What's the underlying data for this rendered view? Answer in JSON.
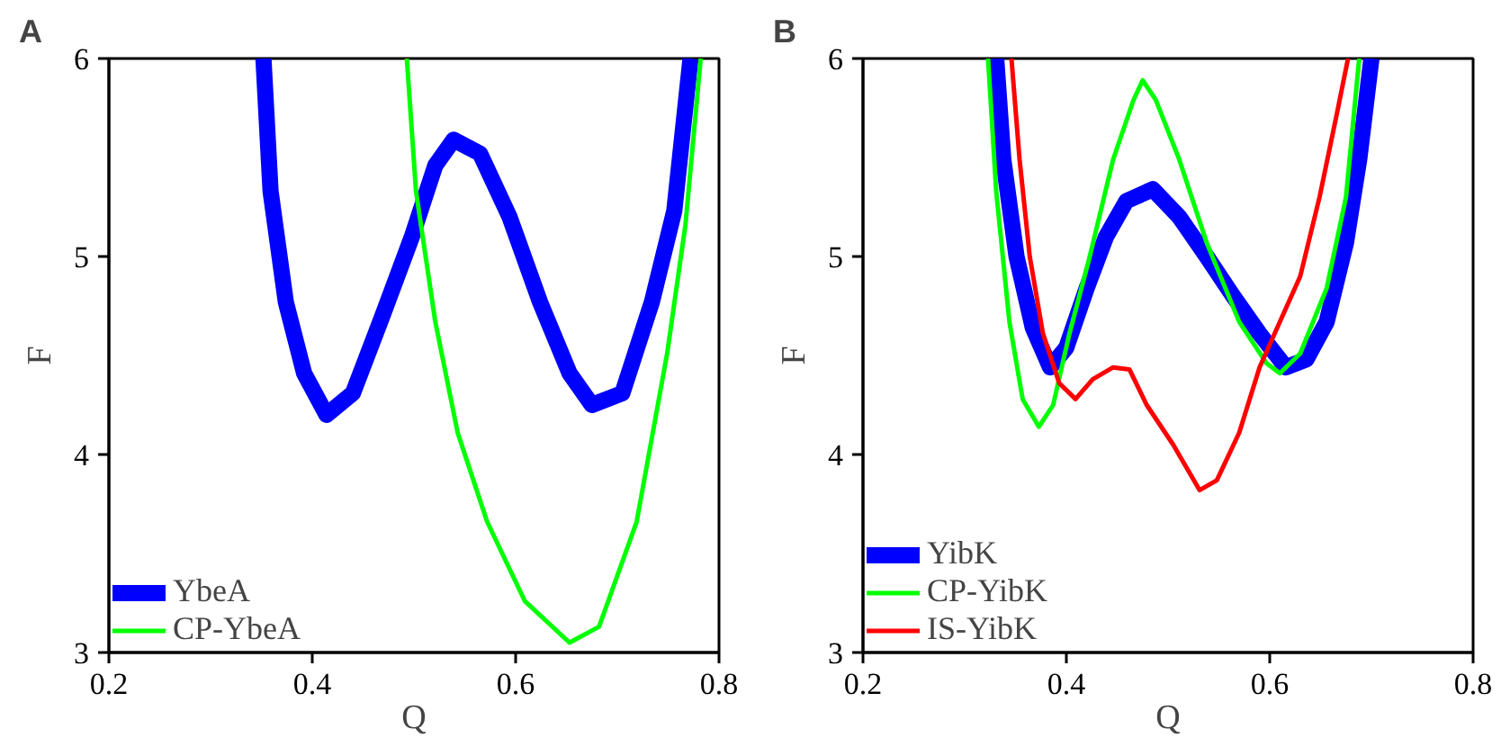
{
  "chart_data": [
    {
      "type": "line",
      "title": "A",
      "xlabel": "Q",
      "ylabel": "F",
      "xlim": [
        0.2,
        0.8
      ],
      "ylim": [
        3,
        6
      ],
      "xticks": [
        0.2,
        0.4,
        0.6,
        0.8
      ],
      "yticks": [
        3,
        4,
        5,
        6
      ],
      "grid": false,
      "legend": "bottom left",
      "series": [
        {
          "name": "YbeA",
          "color": "#0000ff",
          "x": [
            0.352,
            0.359,
            0.374,
            0.392,
            0.414,
            0.44,
            0.469,
            0.498,
            0.521,
            0.539,
            0.565,
            0.594,
            0.624,
            0.653,
            0.675,
            0.705,
            0.734,
            0.756,
            0.772
          ],
          "values": [
            6,
            5.33,
            4.77,
            4.41,
            4.2,
            4.31,
            4.7,
            5.1,
            5.46,
            5.59,
            5.52,
            5.2,
            4.77,
            4.41,
            4.25,
            4.31,
            4.77,
            5.23,
            6
          ]
        },
        {
          "name": "CP-YbeA",
          "color": "#00ff00",
          "x": [
            0.493,
            0.502,
            0.521,
            0.543,
            0.572,
            0.609,
            0.653,
            0.682,
            0.719,
            0.749,
            0.767,
            0.782
          ],
          "values": [
            6,
            5.33,
            4.67,
            4.11,
            3.66,
            3.26,
            3.05,
            3.13,
            3.66,
            4.51,
            5.16,
            6
          ]
        }
      ]
    },
    {
      "type": "line",
      "title": "B",
      "xlabel": "Q",
      "ylabel": "F",
      "xlim": [
        0.2,
        0.8
      ],
      "ylim": [
        3,
        6
      ],
      "xticks": [
        0.2,
        0.4,
        0.6,
        0.8
      ],
      "yticks": [
        3,
        4,
        5,
        6
      ],
      "grid": false,
      "legend": "bottom left",
      "series": [
        {
          "name": "YibK",
          "color": "#0000ff",
          "x": [
            0.331,
            0.338,
            0.351,
            0.367,
            0.384,
            0.4,
            0.42,
            0.439,
            0.459,
            0.485,
            0.511,
            0.538,
            0.564,
            0.59,
            0.616,
            0.636,
            0.656,
            0.675,
            0.688,
            0.7
          ],
          "values": [
            6,
            5.49,
            5.0,
            4.64,
            4.44,
            4.54,
            4.84,
            5.1,
            5.28,
            5.34,
            5.2,
            5.0,
            4.8,
            4.61,
            4.44,
            4.48,
            4.67,
            5.07,
            5.49,
            6
          ]
        },
        {
          "name": "CP-YibK",
          "color": "#00ff00",
          "x": [
            0.323,
            0.331,
            0.344,
            0.357,
            0.373,
            0.387,
            0.403,
            0.423,
            0.446,
            0.466,
            0.475,
            0.488,
            0.511,
            0.538,
            0.57,
            0.597,
            0.61,
            0.63,
            0.656,
            0.675,
            0.688
          ],
          "values": [
            6,
            5.33,
            4.67,
            4.28,
            4.14,
            4.25,
            4.61,
            5.0,
            5.49,
            5.79,
            5.89,
            5.79,
            5.49,
            5.07,
            4.67,
            4.46,
            4.41,
            4.51,
            4.84,
            5.3,
            6
          ]
        },
        {
          "name": "IS-YibK",
          "color": "#ff0000",
          "x": [
            0.346,
            0.354,
            0.364,
            0.377,
            0.393,
            0.409,
            0.426,
            0.446,
            0.462,
            0.479,
            0.505,
            0.531,
            0.548,
            0.57,
            0.59,
            0.61,
            0.63,
            0.649,
            0.666,
            0.677
          ],
          "values": [
            6,
            5.49,
            5.0,
            4.61,
            4.36,
            4.28,
            4.38,
            4.44,
            4.43,
            4.25,
            4.05,
            3.82,
            3.87,
            4.11,
            4.44,
            4.67,
            4.9,
            5.3,
            5.72,
            6
          ]
        }
      ]
    }
  ]
}
